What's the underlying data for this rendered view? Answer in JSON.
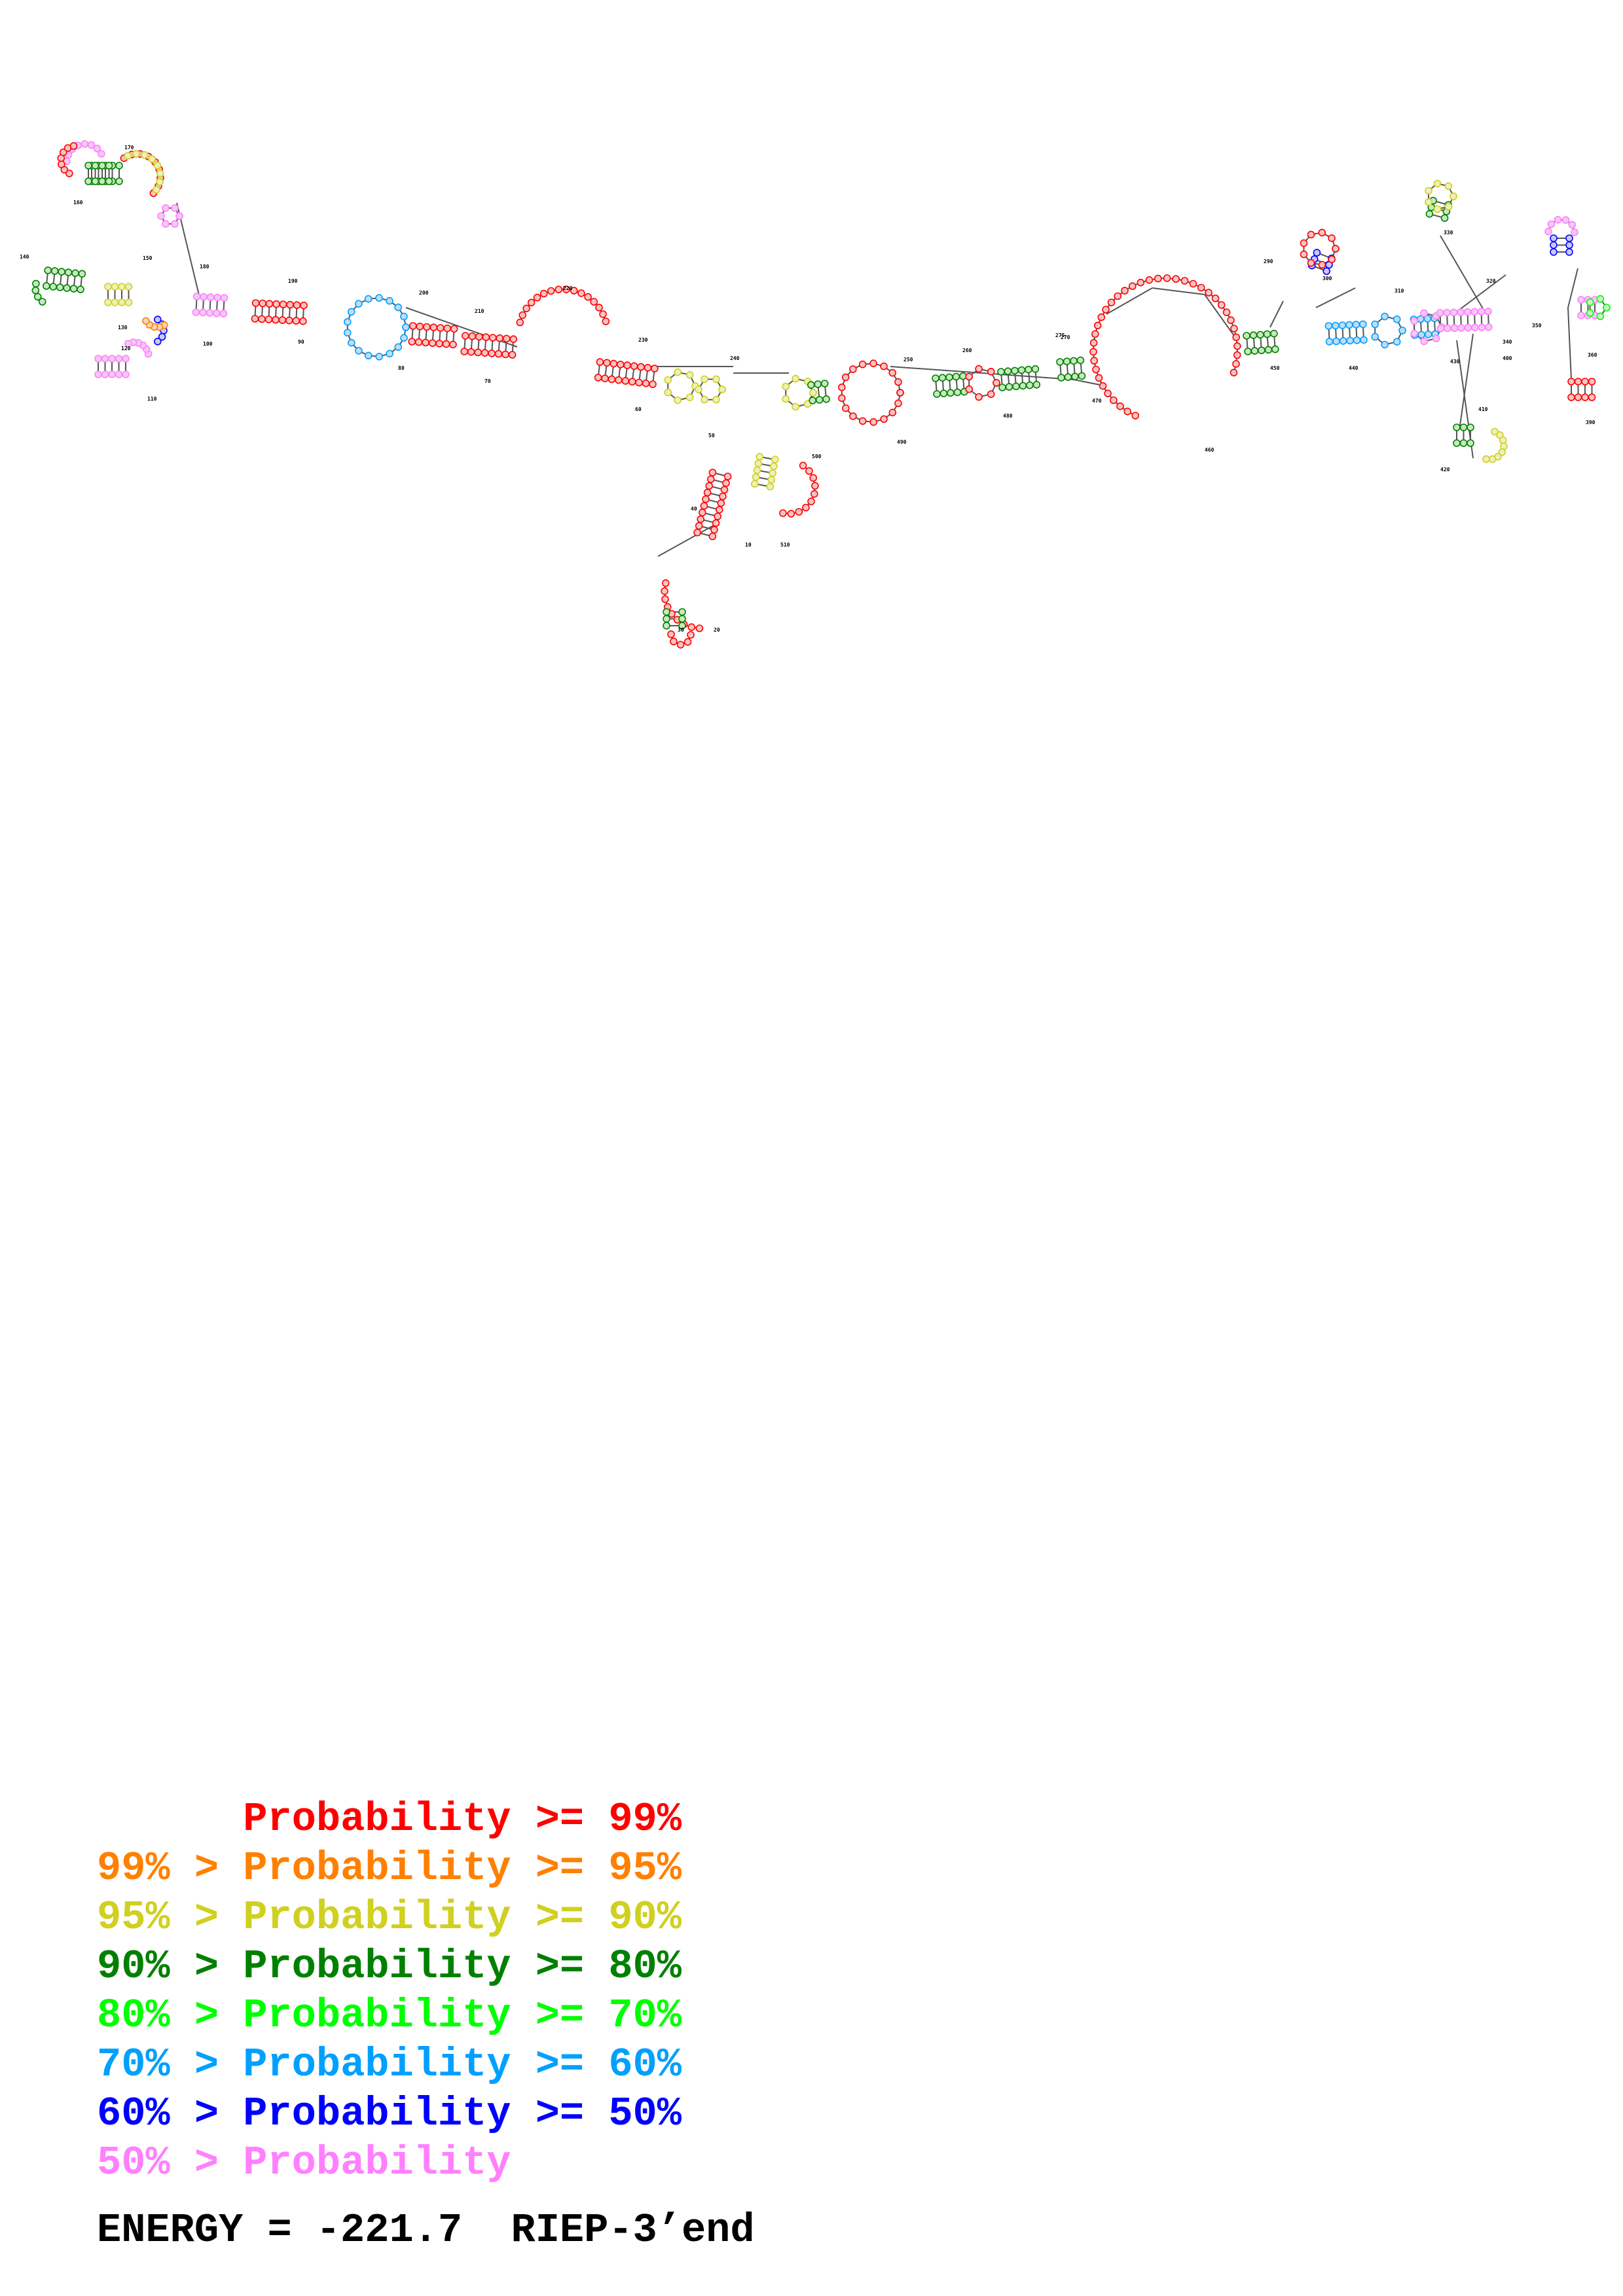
{
  "diagram": {
    "type": "rna-secondary-structure",
    "base_pair_colors": {
      "ge99": "#ff0000",
      "ge95": "#ff8000",
      "ge90": "#d0d020",
      "ge80": "#008000",
      "ge70": "#00ff00",
      "ge60": "#00a0ff",
      "ge50": "#0000ff",
      "lt50": "#ff80ff"
    },
    "position_labels": [
      "10",
      "20",
      "30",
      "40",
      "50",
      "60",
      "70",
      "80",
      "90",
      "100",
      "110",
      "120",
      "130",
      "140",
      "150",
      "160",
      "170",
      "180",
      "190",
      "200",
      "210",
      "220",
      "230",
      "240",
      "250",
      "260",
      "270",
      "275",
      "290",
      "300",
      "310",
      "320",
      "330",
      "340",
      "350",
      "360",
      "390",
      "400",
      "410",
      "420",
      "430",
      "440",
      "450",
      "460",
      "470",
      "480",
      "490",
      "500",
      "510"
    ]
  },
  "legend": {
    "rows": [
      {
        "prefix": "    ",
        "label": "Probability >= 99%",
        "color": "#ff0000"
      },
      {
        "prefix": "99% > ",
        "label": "Probability >= 95%",
        "color": "#ff8000"
      },
      {
        "prefix": "95% > ",
        "label": "Probability >= 90%",
        "color": "#d0d020"
      },
      {
        "prefix": "90% > ",
        "label": "Probability >= 80%",
        "color": "#008000"
      },
      {
        "prefix": "80% > ",
        "label": "Probability >= 70%",
        "color": "#00ff00"
      },
      {
        "prefix": "70% > ",
        "label": "Probability >= 60%",
        "color": "#00a0ff"
      },
      {
        "prefix": "60% > ",
        "label": "Probability >= 50%",
        "color": "#0000ff"
      },
      {
        "prefix": "50% > ",
        "label": "Probability",
        "color": "#ff80ff"
      }
    ]
  },
  "energy": {
    "text": "ENERGY = -221.7  RIEP-3’end"
  }
}
